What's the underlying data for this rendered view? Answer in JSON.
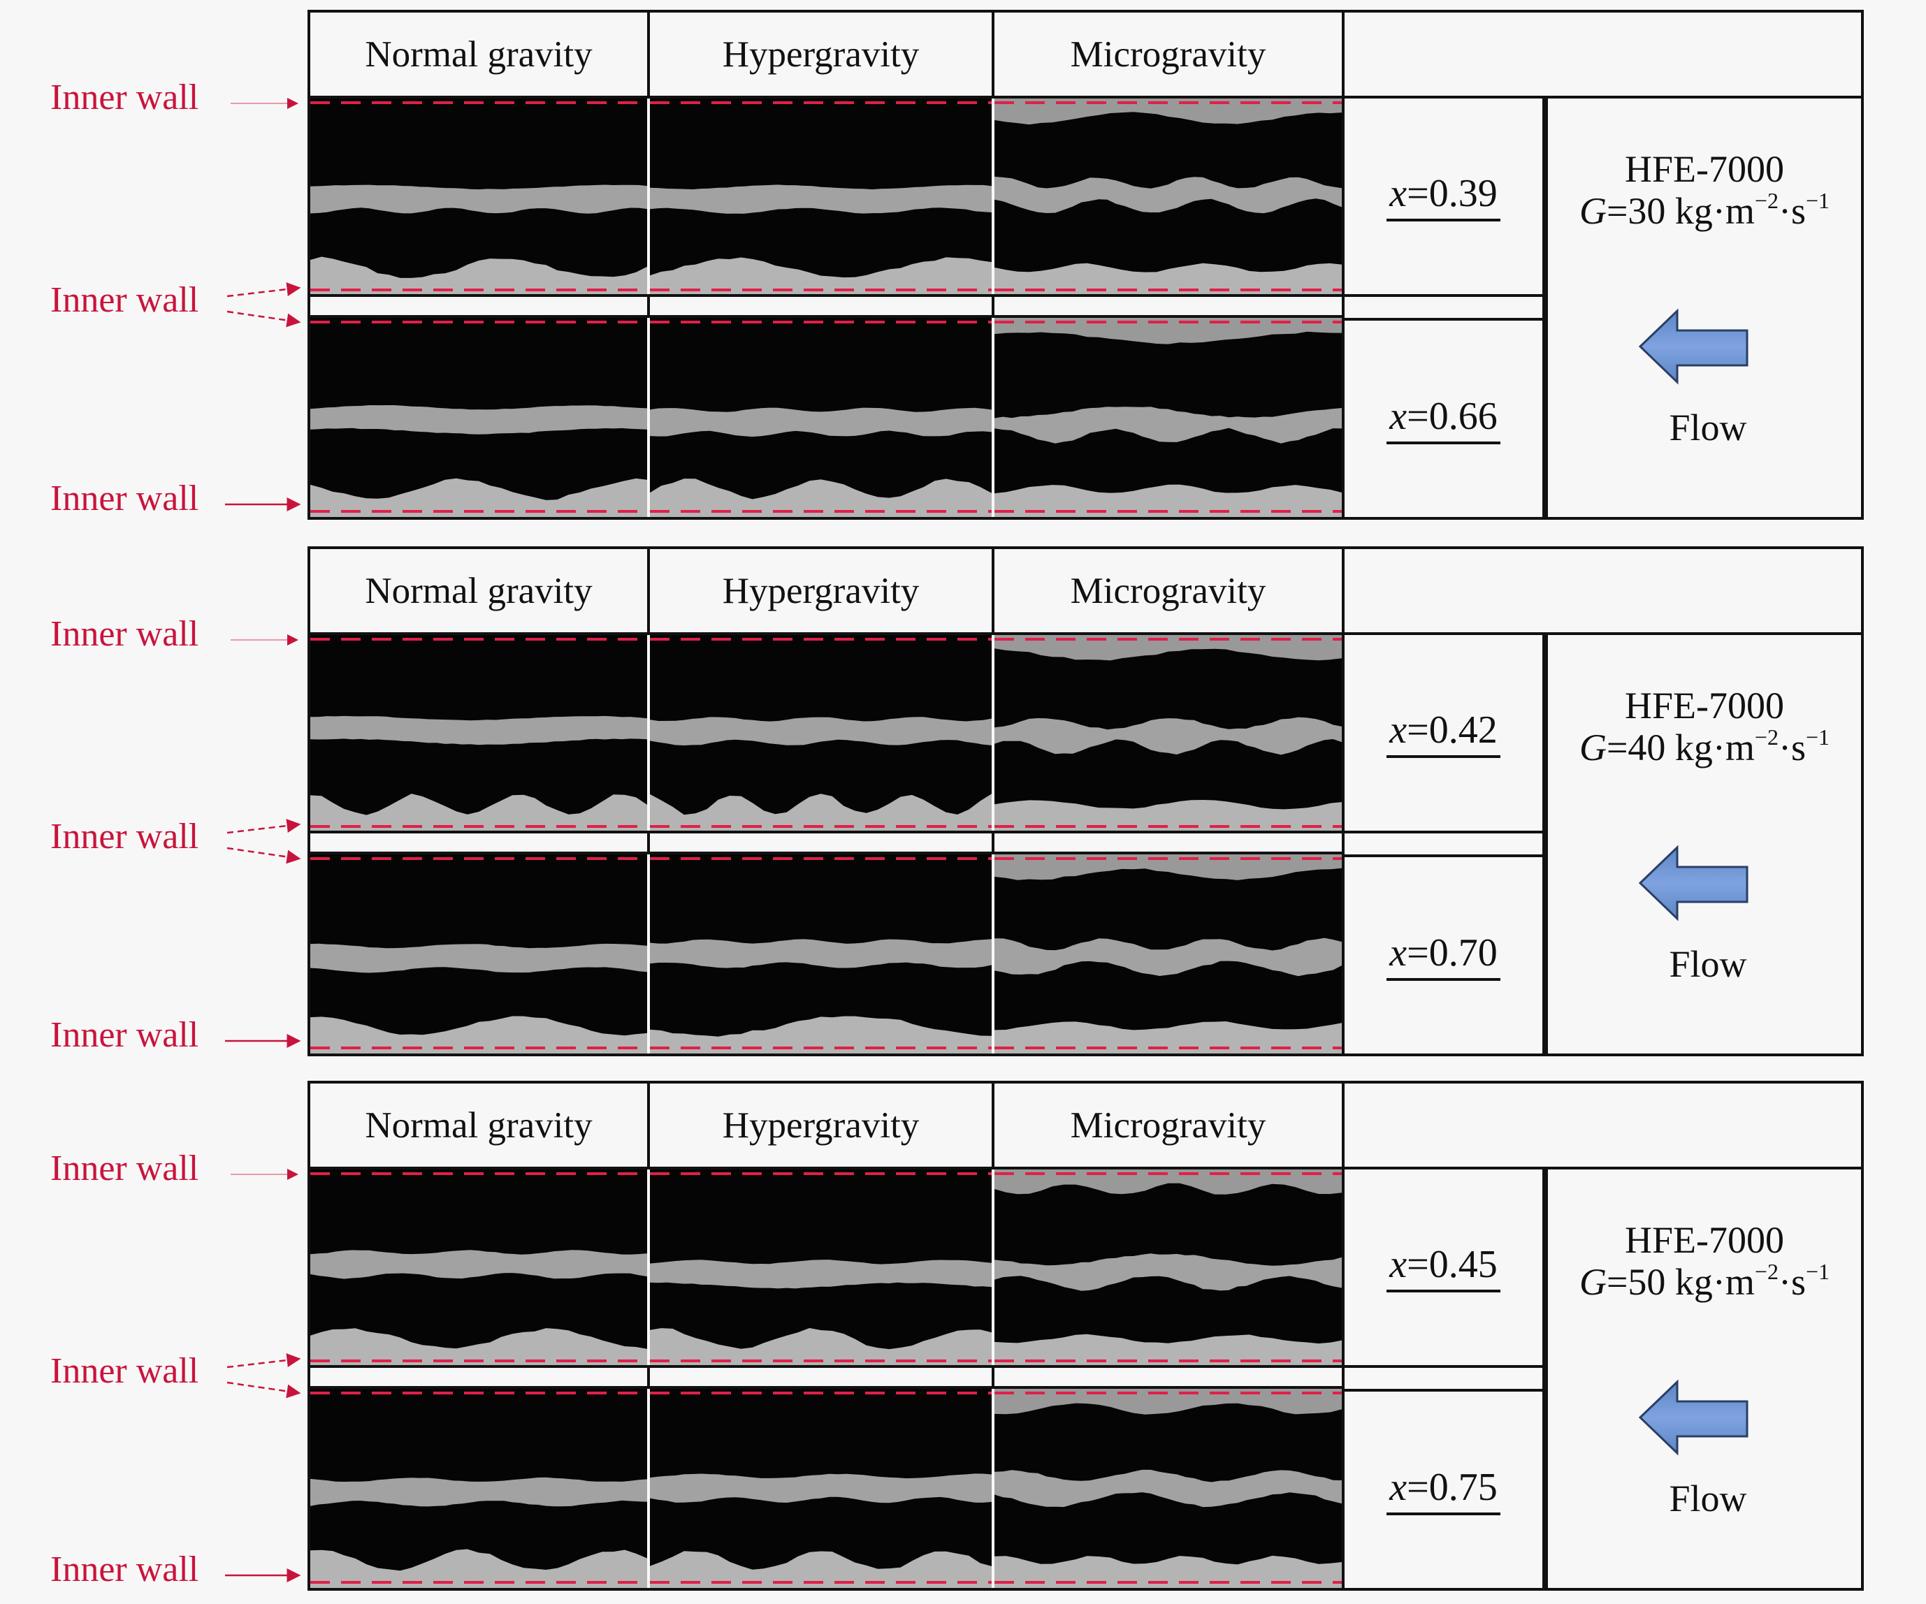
{
  "colors": {
    "inner_wall_label": "#c8143c",
    "wall_line": "#e0204a",
    "flow_arrow": "#6a95d0",
    "image_dark": "#050505",
    "image_gray": "#b4b4b4"
  },
  "panels": [
    {
      "headers": [
        "Normal gravity",
        "Hypergravity",
        "Microgravity"
      ],
      "x_upper": {
        "symbol": "x",
        "value": "=0.39"
      },
      "x_lower": {
        "symbol": "x",
        "value": "=0.66"
      },
      "fluid": "HFE-7000",
      "g": {
        "symbol": "G",
        "text": "=30 kg·m",
        "exp1": "−2",
        "mid": "·s",
        "exp2": "−1"
      },
      "flow_label": "Flow",
      "flow_icon": "arrow-left-icon",
      "inner_wall_labels": [
        "Inner wall",
        "Inner wall",
        "Inner wall"
      ]
    },
    {
      "headers": [
        "Normal gravity",
        "Hypergravity",
        "Microgravity"
      ],
      "x_upper": {
        "symbol": "x",
        "value": "=0.42"
      },
      "x_lower": {
        "symbol": "x",
        "value": "=0.70"
      },
      "fluid": "HFE-7000",
      "g": {
        "symbol": "G",
        "text": "=40 kg·m",
        "exp1": "−2",
        "mid": "·s",
        "exp2": "−1"
      },
      "flow_label": "Flow",
      "flow_icon": "arrow-left-icon",
      "inner_wall_labels": [
        "Inner wall",
        "Inner wall",
        "Inner wall"
      ]
    },
    {
      "headers": [
        "Normal gravity",
        "Hypergravity",
        "Microgravity"
      ],
      "x_upper": {
        "symbol": "x",
        "value": "=0.45"
      },
      "x_lower": {
        "symbol": "x",
        "value": "=0.75"
      },
      "fluid": "HFE-7000",
      "g": {
        "symbol": "G",
        "text": "=50 kg·m",
        "exp1": "−2",
        "mid": "·s",
        "exp2": "−1"
      },
      "flow_label": "Flow",
      "flow_icon": "arrow-left-icon",
      "inner_wall_labels": [
        "Inner wall",
        "Inner wall",
        "Inner wall"
      ]
    }
  ]
}
